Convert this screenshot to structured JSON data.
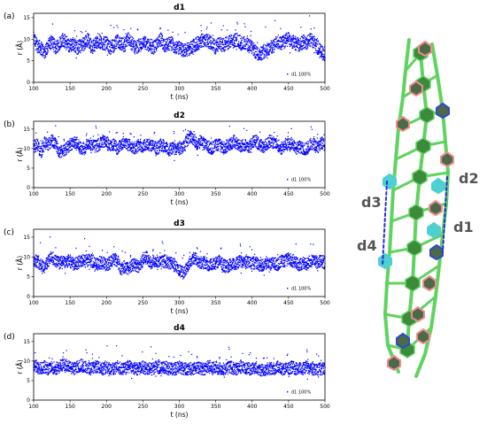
{
  "chart_data": [
    {
      "type": "scatter",
      "panel_label": "(a)",
      "title": "d1",
      "xlabel": "t (ns)",
      "ylabel": "r (Å)",
      "xlim": [
        100,
        500
      ],
      "ylim": [
        0,
        16
      ],
      "x_ticks": [
        100,
        150,
        200,
        250,
        300,
        350,
        400,
        450,
        500
      ],
      "y_ticks": [
        0,
        5,
        10,
        15
      ],
      "legend": "d1 100%",
      "legend_position": "bottom-right",
      "color": "#0000ff",
      "series": [
        {
          "x": [
            100,
            105,
            110,
            115,
            120,
            125,
            130,
            135,
            140,
            145,
            150,
            155,
            160,
            165,
            170,
            175,
            180,
            185,
            190,
            195,
            200,
            205,
            210,
            215,
            220,
            225,
            230,
            235,
            240,
            245,
            250,
            255,
            260,
            265,
            270,
            275,
            280,
            285,
            290,
            295,
            300,
            305,
            310,
            315,
            320,
            325,
            330,
            335,
            340,
            345,
            350,
            355,
            360,
            365,
            370,
            375,
            380,
            385,
            390,
            395,
            400,
            405,
            410,
            415,
            420,
            425,
            430,
            435,
            440,
            445,
            450,
            455,
            460,
            465,
            470,
            475,
            480,
            485,
            490,
            495,
            500
          ],
          "values": [
            10,
            8.5,
            8,
            7,
            8.5,
            9.5,
            8,
            9,
            10,
            9,
            8.5,
            9,
            8,
            8.5,
            9,
            10,
            8,
            9,
            9.5,
            9,
            9,
            8,
            8.5,
            9.5,
            9,
            8.5,
            10,
            9,
            8,
            8.5,
            9,
            9,
            8.5,
            8,
            9,
            10,
            8.5,
            9,
            9,
            8,
            8,
            7.5,
            7.5,
            8,
            8.5,
            9,
            9.5,
            10,
            9.5,
            9,
            8,
            9,
            8.5,
            9,
            9.5,
            9.5,
            10,
            9,
            9,
            8.5,
            8,
            7,
            6.5,
            7,
            7.5,
            8,
            8.5,
            9.5,
            9,
            9.5,
            10,
            9.5,
            9,
            8.5,
            9.5,
            9,
            10,
            9,
            8,
            7,
            6.5
          ]
        }
      ]
    },
    {
      "type": "scatter",
      "panel_label": "(b)",
      "title": "d2",
      "xlabel": "t (ns)",
      "ylabel": "r (Å)",
      "xlim": [
        100,
        500
      ],
      "ylim": [
        0,
        17
      ],
      "x_ticks": [
        100,
        150,
        200,
        250,
        300,
        350,
        400,
        450,
        500
      ],
      "y_ticks": [
        0,
        5,
        10,
        15
      ],
      "legend": "d1 100%",
      "legend_position": "bottom-right",
      "color": "#0000ff",
      "series": [
        {
          "x": [
            100,
            105,
            110,
            115,
            120,
            125,
            130,
            135,
            140,
            145,
            150,
            155,
            160,
            165,
            170,
            175,
            180,
            185,
            190,
            195,
            200,
            205,
            210,
            215,
            220,
            225,
            230,
            235,
            240,
            245,
            250,
            255,
            260,
            265,
            270,
            275,
            280,
            285,
            290,
            295,
            300,
            305,
            310,
            315,
            320,
            325,
            330,
            335,
            340,
            345,
            350,
            355,
            360,
            365,
            370,
            375,
            380,
            385,
            390,
            395,
            400,
            405,
            410,
            415,
            420,
            425,
            430,
            435,
            440,
            445,
            450,
            455,
            460,
            465,
            470,
            475,
            480,
            485,
            490,
            495,
            500
          ],
          "values": [
            10.5,
            11,
            9,
            11.5,
            11,
            12,
            11.5,
            9,
            9.5,
            10,
            11,
            11.5,
            11,
            10,
            10,
            11.5,
            11,
            10.5,
            11,
            12,
            11.5,
            10.5,
            11,
            10,
            11,
            12,
            11,
            10.5,
            10,
            11,
            10.5,
            11,
            11,
            10.5,
            10,
            11,
            10.5,
            9.5,
            10,
            10,
            10,
            10.5,
            12,
            13,
            12.5,
            11,
            12,
            11,
            10.5,
            10,
            11,
            11,
            10,
            10.5,
            11,
            12,
            11,
            10.5,
            11,
            10,
            11.5,
            12,
            11,
            10.5,
            11,
            12,
            11.5,
            11,
            10,
            11,
            11,
            11.5,
            10,
            10.5,
            10,
            10,
            11,
            11,
            10,
            11.5,
            11
          ]
        }
      ]
    },
    {
      "type": "scatter",
      "panel_label": "(c)",
      "title": "d3",
      "xlabel": "t (ns)",
      "ylabel": "r (Å)",
      "xlim": [
        100,
        500
      ],
      "ylim": [
        0,
        17
      ],
      "x_ticks": [
        100,
        150,
        200,
        250,
        300,
        350,
        400,
        450,
        500
      ],
      "y_ticks": [
        0,
        5,
        10,
        15
      ],
      "legend": "d1 100%",
      "legend_position": "bottom-right",
      "color": "#0000ff",
      "series": [
        {
          "x": [
            100,
            105,
            110,
            115,
            120,
            125,
            130,
            135,
            140,
            145,
            150,
            155,
            160,
            165,
            170,
            175,
            180,
            185,
            190,
            195,
            200,
            205,
            210,
            215,
            220,
            225,
            230,
            235,
            240,
            245,
            250,
            255,
            260,
            265,
            270,
            275,
            280,
            285,
            290,
            295,
            300,
            305,
            310,
            315,
            320,
            325,
            330,
            335,
            340,
            345,
            350,
            355,
            360,
            365,
            370,
            375,
            380,
            385,
            390,
            395,
            400,
            405,
            410,
            415,
            420,
            425,
            430,
            435,
            440,
            445,
            450,
            455,
            460,
            465,
            470,
            475,
            480,
            485,
            490,
            495,
            500
          ],
          "values": [
            9,
            9,
            8,
            7.5,
            9,
            10,
            9,
            8.5,
            8.5,
            9,
            9,
            8,
            8.5,
            9,
            9,
            9,
            9,
            8,
            8.5,
            8.5,
            8,
            8.5,
            9.5,
            9,
            7,
            7.5,
            7,
            8,
            8,
            7.5,
            9,
            10,
            8.5,
            9,
            9,
            8.5,
            9,
            8.5,
            8.5,
            7.5,
            6.5,
            6,
            7,
            9,
            10,
            9,
            8.5,
            8.5,
            8,
            8,
            8.5,
            9,
            8,
            7.5,
            8,
            8,
            8.5,
            9,
            8.5,
            9,
            8.5,
            8.5,
            8,
            8,
            8.5,
            8,
            8.5,
            8,
            9,
            9,
            9.5,
            9,
            8.5,
            8,
            8.5,
            8,
            9,
            9,
            8.5,
            9,
            8.5
          ]
        }
      ]
    },
    {
      "type": "scatter",
      "panel_label": "(d)",
      "title": "d4",
      "xlabel": "t (ns)",
      "ylabel": "r (Å)",
      "xlim": [
        100,
        500
      ],
      "ylim": [
        0,
        17
      ],
      "x_ticks": [
        100,
        150,
        200,
        250,
        300,
        350,
        400,
        450,
        500
      ],
      "y_ticks": [
        0,
        5,
        10,
        15
      ],
      "legend": "d1 100%",
      "legend_position": "bottom-right",
      "color": "#0000ff",
      "series": [
        {
          "x": [
            100,
            105,
            110,
            115,
            120,
            125,
            130,
            135,
            140,
            145,
            150,
            155,
            160,
            165,
            170,
            175,
            180,
            185,
            190,
            195,
            200,
            205,
            210,
            215,
            220,
            225,
            230,
            235,
            240,
            245,
            250,
            255,
            260,
            265,
            270,
            275,
            280,
            285,
            290,
            295,
            300,
            305,
            310,
            315,
            320,
            325,
            330,
            335,
            340,
            345,
            350,
            355,
            360,
            365,
            370,
            375,
            380,
            385,
            390,
            395,
            400,
            405,
            410,
            415,
            420,
            425,
            430,
            435,
            440,
            445,
            450,
            455,
            460,
            465,
            470,
            475,
            480,
            485,
            490,
            495,
            500
          ],
          "values": [
            9,
            8.5,
            8,
            8.5,
            8,
            8.5,
            8,
            8.5,
            9,
            9,
            8.5,
            8,
            8.5,
            9,
            8.5,
            8,
            8,
            8.5,
            8.5,
            8,
            8.5,
            8,
            8,
            8.5,
            8,
            8,
            8.5,
            8.5,
            8,
            8,
            8.5,
            8,
            8,
            8,
            8.5,
            8,
            8.5,
            8,
            8,
            8,
            8.5,
            8,
            8,
            8,
            8,
            8.5,
            8,
            8,
            8.5,
            8,
            8.5,
            8,
            8,
            8,
            8.5,
            8,
            8,
            8.5,
            8,
            8,
            8,
            8.5,
            8,
            7.5,
            8,
            8,
            8,
            8.5,
            8,
            8,
            8,
            8.5,
            8,
            8,
            8,
            8.5,
            8,
            8,
            8,
            8,
            8
          ]
        }
      ]
    }
  ],
  "molecule": {
    "labels": [
      "d2",
      "d3",
      "d1",
      "d4"
    ],
    "colors": {
      "backbone": "#5fd35f",
      "pink": "#f08c8c",
      "blue": "#3348c8",
      "cyan": "#4fd0d0",
      "dash": "#2a2ae0"
    }
  }
}
